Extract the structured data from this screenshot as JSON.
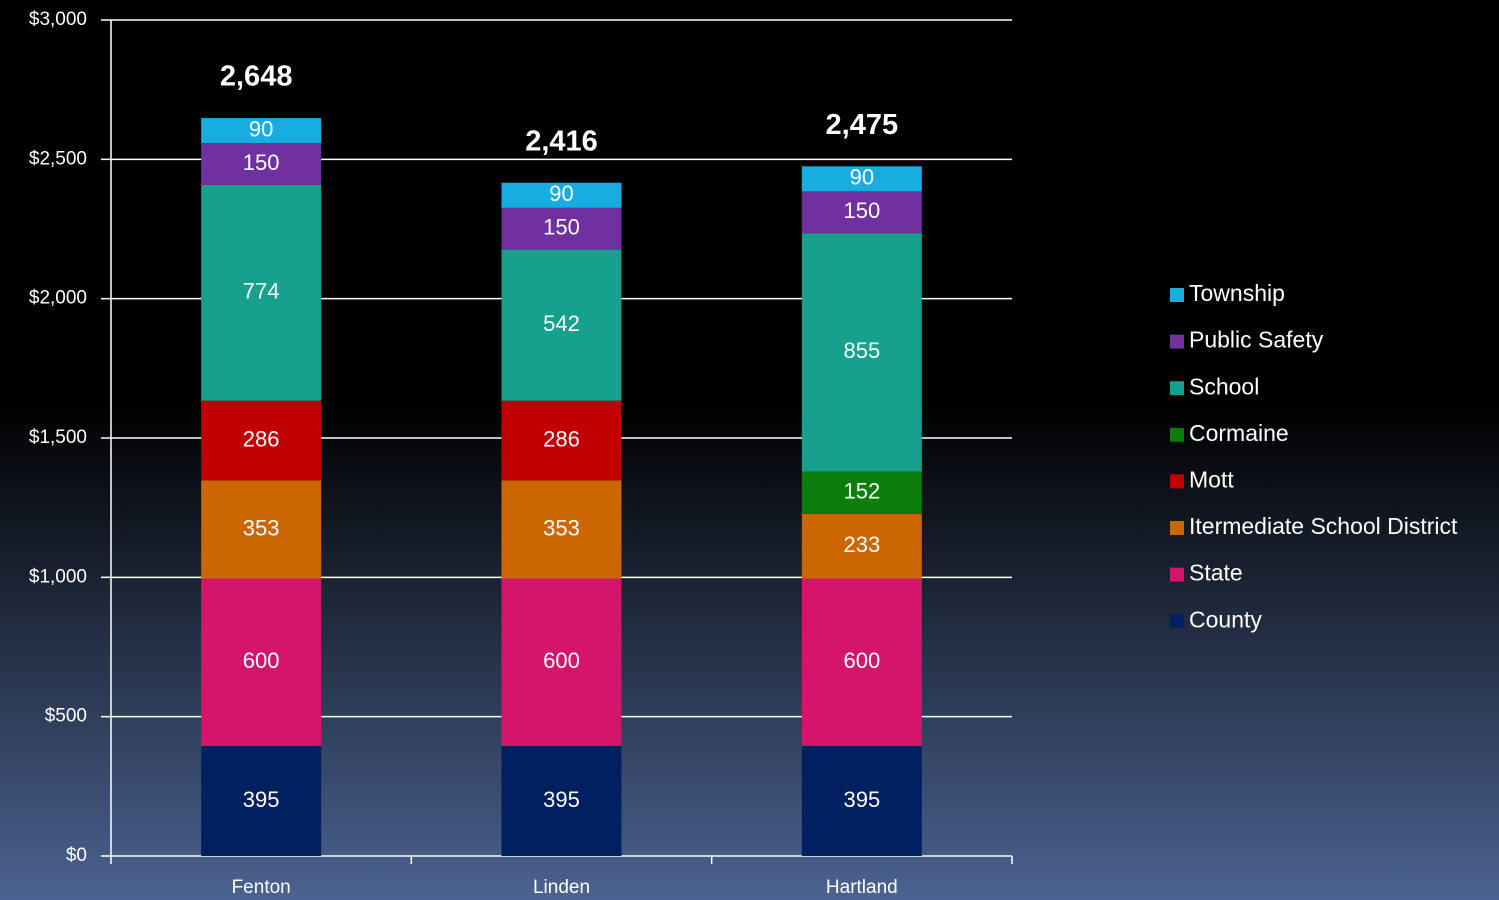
{
  "chart_data": {
    "type": "stacked-bar",
    "categories": [
      "Fenton",
      "Linden",
      "Hartland"
    ],
    "series": [
      {
        "name": "County",
        "color": "#002060",
        "values": [
          395,
          395,
          395
        ]
      },
      {
        "name": "State",
        "color": "#d4156b",
        "values": [
          600,
          600,
          600
        ]
      },
      {
        "name": "Itermediate School District",
        "color": "#cc6600",
        "values": [
          353,
          353,
          233
        ]
      },
      {
        "name": "Mott",
        "color": "#c00000",
        "values": [
          286,
          286,
          null
        ]
      },
      {
        "name": "Cormaine",
        "color": "#0a7d0a",
        "values": [
          null,
          null,
          152
        ]
      },
      {
        "name": "School",
        "color": "#17a08c",
        "values": [
          774,
          542,
          855
        ]
      },
      {
        "name": "Public Safety",
        "color": "#7030a0",
        "values": [
          150,
          150,
          150
        ]
      },
      {
        "name": "Township",
        "color": "#18ade0",
        "values": [
          90,
          90,
          90
        ]
      }
    ],
    "totals": [
      2648,
      2416,
      2475
    ],
    "totals_labels": [
      "2,648",
      "2,416",
      "2,475"
    ],
    "ylim": [
      0,
      3000
    ],
    "yticks": [
      {
        "value": 0,
        "label": "$0"
      },
      {
        "value": 500,
        "label": "$500"
      },
      {
        "value": 1000,
        "label": "$1,000"
      },
      {
        "value": 1500,
        "label": "$1,500"
      },
      {
        "value": 2000,
        "label": "$2,000"
      },
      {
        "value": 2500,
        "label": "$2,500"
      },
      {
        "value": 3000,
        "label": "$3,000"
      }
    ],
    "grid": true,
    "legend": "right"
  }
}
